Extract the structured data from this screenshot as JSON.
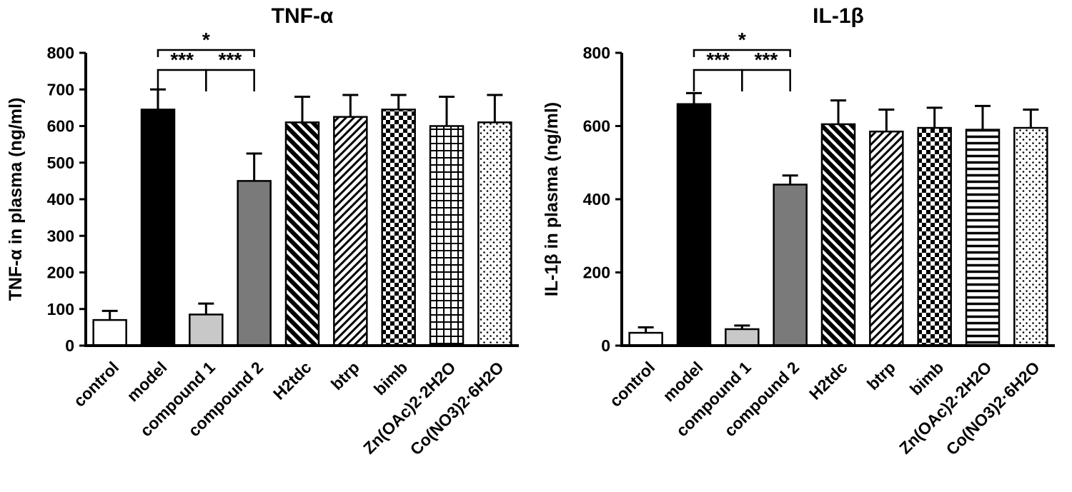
{
  "page": {
    "background": "#ffffff"
  },
  "styles": {
    "axis_color": "#000000",
    "text_color": "#000000",
    "bar_outline": "#000000",
    "fill_open": "#ffffff",
    "fill_solid": "#000000",
    "fill_gray_light": "#c8c8c8",
    "fill_gray_dark": "#7a7a7a"
  },
  "chart_data": [
    {
      "type": "bar",
      "title": "TNF-α",
      "xlabel": "",
      "ylabel": "TNF-α  in plasma (ng/ml)",
      "ylim": [
        0,
        800
      ],
      "ytick_step": 100,
      "grid": false,
      "legend": "none",
      "categories": [
        "control",
        "model",
        "compound 1",
        "compound 2",
        "H2tdc",
        "btrp",
        "bimb",
        "Zn(OAc)2·2H2O",
        "Co(NO3)2·6H2O"
      ],
      "values": [
        70,
        645,
        85,
        450,
        610,
        625,
        645,
        600,
        610
      ],
      "errors": [
        25,
        55,
        30,
        75,
        70,
        60,
        40,
        80,
        75
      ],
      "bar_styles": [
        "open",
        "solid",
        "gray-light",
        "gray-dark",
        "diag-thick",
        "diag-thin",
        "checker",
        "grid",
        "dots"
      ],
      "significance": [
        {
          "from": "model",
          "to": "compound 1",
          "label": "***",
          "level": 0
        },
        {
          "from": "compound 1",
          "to": "compound 2",
          "label": "***",
          "level": 0
        },
        {
          "from": "model",
          "to": "compound 2",
          "label": "*",
          "level": 1
        }
      ]
    },
    {
      "type": "bar",
      "title": "IL-1β",
      "xlabel": "",
      "ylabel": "IL-1β  in plasma (ng/ml)",
      "ylim": [
        0,
        800
      ],
      "ytick_step": 200,
      "grid": false,
      "legend": "none",
      "categories": [
        "control",
        "model",
        "compound 1",
        "compound 2",
        "H2tdc",
        "btrp",
        "bimb",
        "Zn(OAc)2·2H2O",
        "Co(NO3)2·6H2O"
      ],
      "values": [
        35,
        660,
        45,
        440,
        605,
        585,
        595,
        590,
        595
      ],
      "errors": [
        15,
        30,
        10,
        25,
        65,
        60,
        55,
        65,
        50
      ],
      "bar_styles": [
        "open",
        "solid",
        "gray-light",
        "gray-dark",
        "diag-thick",
        "diag-thin",
        "checker",
        "hlines",
        "dots"
      ],
      "significance": [
        {
          "from": "model",
          "to": "compound 1",
          "label": "***",
          "level": 0
        },
        {
          "from": "compound 1",
          "to": "compound 2",
          "label": "***",
          "level": 0
        },
        {
          "from": "model",
          "to": "compound 2",
          "label": "*",
          "level": 1
        }
      ]
    }
  ]
}
